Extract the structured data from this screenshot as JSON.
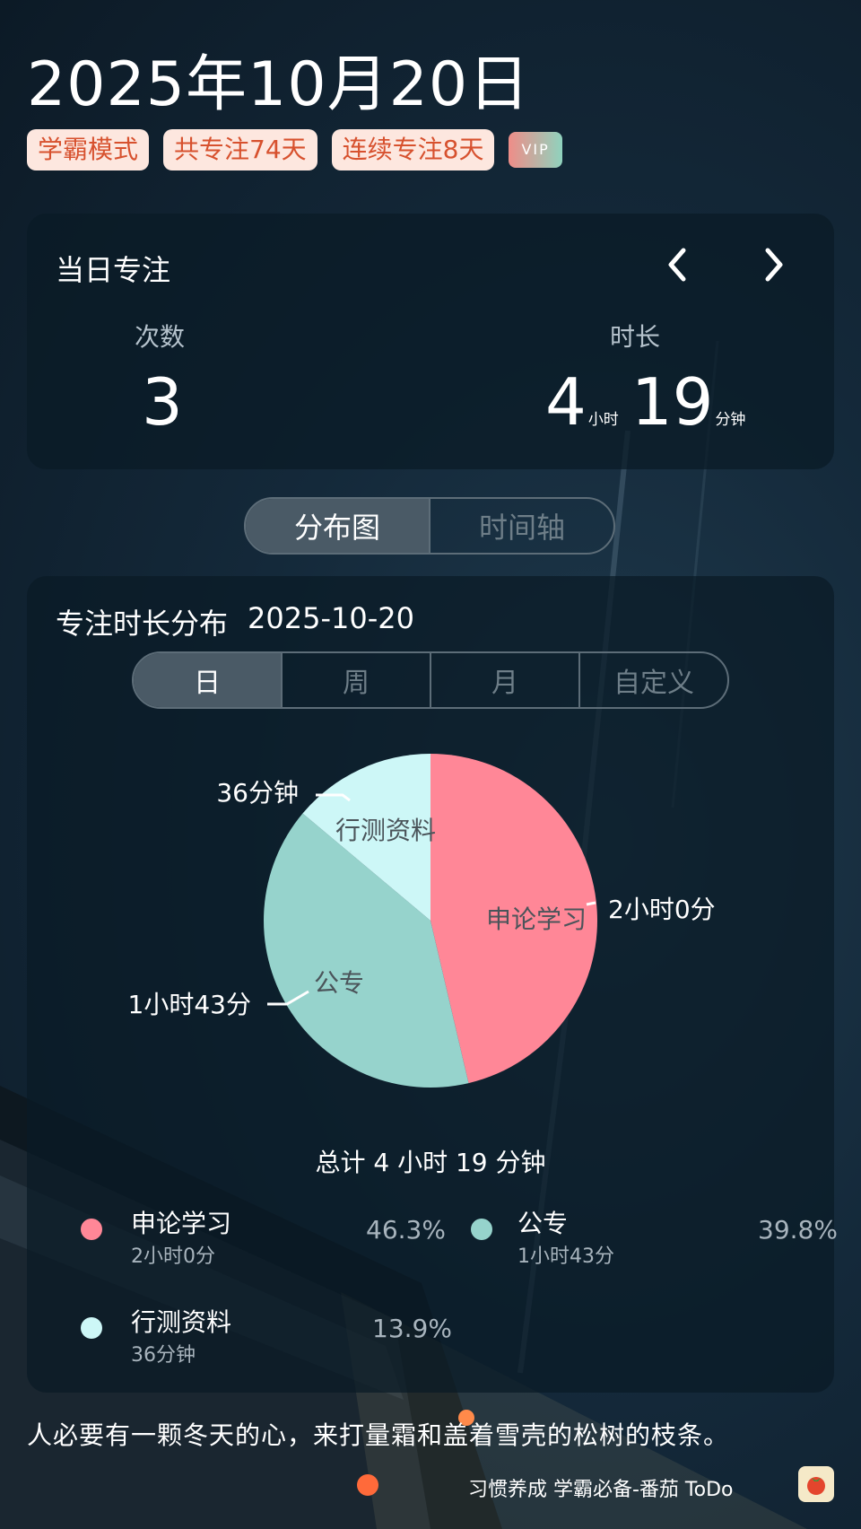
{
  "header": {
    "date_title": "2025年10月20日",
    "badges": [
      "学霸模式",
      "共专注74天",
      "连续专注8天"
    ],
    "vip_label": "VIP"
  },
  "daily_focus": {
    "title": "当日专注",
    "count_label": "次数",
    "count_value": "3",
    "duration_label": "时长",
    "hours": "4",
    "hours_unit": "小时",
    "minutes": "19",
    "minutes_unit": "分钟"
  },
  "view_tabs": [
    {
      "label": "分布图",
      "active": true
    },
    {
      "label": "时间轴",
      "active": false
    }
  ],
  "distribution": {
    "title": "专注时长分布",
    "date": "2025-10-20",
    "range_tabs": [
      {
        "label": "日",
        "active": true
      },
      {
        "label": "周",
        "active": false
      },
      {
        "label": "月",
        "active": false
      },
      {
        "label": "自定义",
        "active": false
      }
    ],
    "total_text": "总计 4 小时 19 分钟"
  },
  "chart_data": {
    "type": "pie",
    "unit": "minutes",
    "slices": [
      {
        "name": "申论学习",
        "value": 120,
        "duration_label": "2小时0分",
        "percent": "46.3%",
        "color": "#ff8797"
      },
      {
        "name": "公专",
        "value": 103,
        "duration_label": "1小时43分",
        "percent": "39.8%",
        "color": "#96d3cc"
      },
      {
        "name": "行测资料",
        "value": 36,
        "duration_label": "36分钟",
        "percent": "13.9%",
        "color": "#cdf7f7"
      }
    ]
  },
  "quote": "人必要有一颗冬天的心，来打量霜和盖着雪壳的松树的枝条。",
  "footer": "习惯养成 学霸必备-番茄 ToDo",
  "colors": {
    "accent_badge_text": "#d7512e",
    "badge_bg": "#fde7df"
  }
}
